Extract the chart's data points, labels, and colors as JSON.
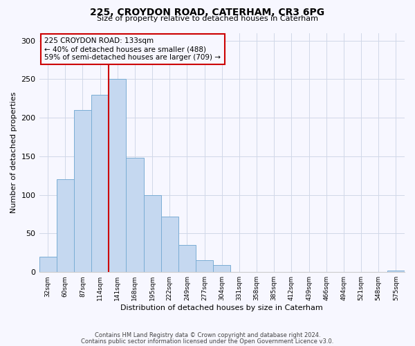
{
  "title": "225, CROYDON ROAD, CATERHAM, CR3 6PG",
  "subtitle": "Size of property relative to detached houses in Caterham",
  "xlabel": "Distribution of detached houses by size in Caterham",
  "ylabel": "Number of detached properties",
  "bar_labels": [
    "32sqm",
    "60sqm",
    "87sqm",
    "114sqm",
    "141sqm",
    "168sqm",
    "195sqm",
    "222sqm",
    "249sqm",
    "277sqm",
    "304sqm",
    "331sqm",
    "358sqm",
    "385sqm",
    "412sqm",
    "439sqm",
    "466sqm",
    "494sqm",
    "521sqm",
    "548sqm",
    "575sqm"
  ],
  "bar_values": [
    20,
    120,
    210,
    230,
    250,
    148,
    100,
    72,
    35,
    15,
    9,
    0,
    0,
    0,
    0,
    0,
    0,
    0,
    0,
    0,
    2
  ],
  "bar_color": "#c5d8f0",
  "bar_edge_color": "#7aadd4",
  "vline_color": "#cc0000",
  "annotation_title": "225 CROYDON ROAD: 133sqm",
  "annotation_line2": "← 40% of detached houses are smaller (488)",
  "annotation_line3": "59% of semi-detached houses are larger (709) →",
  "annotation_box_color": "#cc0000",
  "ylim": [
    0,
    310
  ],
  "yticks": [
    0,
    50,
    100,
    150,
    200,
    250,
    300
  ],
  "footer1": "Contains HM Land Registry data © Crown copyright and database right 2024.",
  "footer2": "Contains public sector information licensed under the Open Government Licence v3.0.",
  "bg_color": "#f7f7ff"
}
